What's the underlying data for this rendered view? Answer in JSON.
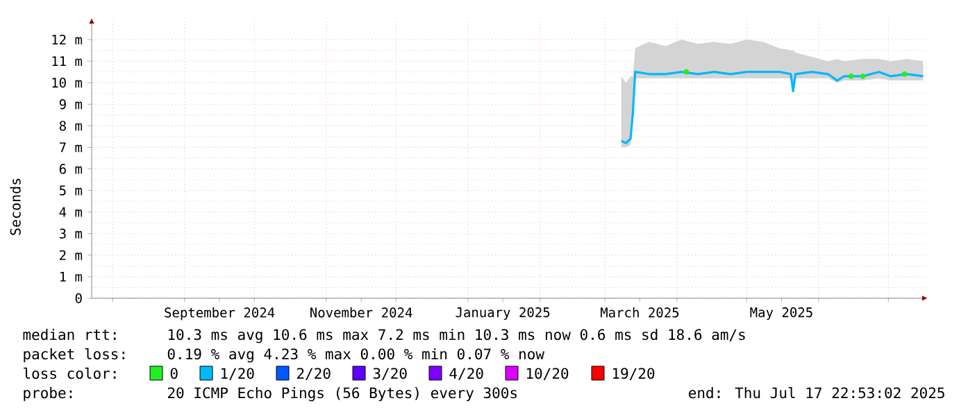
{
  "chart_data": {
    "type": "line",
    "ylabel": "Seconds",
    "xlim": [
      "2024-07-22T22:53",
      "2025-07-17T22:53"
    ],
    "xticks": [
      {
        "value": "2024-08-01",
        "label": null
      },
      {
        "value": "2024-09-01",
        "label": null
      },
      {
        "value": "2024-10-01",
        "label": null
      },
      {
        "value": "2024-11-01",
        "label": null
      },
      {
        "value": "2024-12-01",
        "label": null
      },
      {
        "value": "2025-01-01",
        "label": null
      },
      {
        "value": "2025-02-01",
        "label": null
      },
      {
        "value": "2025-03-01",
        "label": null
      },
      {
        "value": "2025-04-01",
        "label": null
      },
      {
        "value": "2025-05-01",
        "label": null
      },
      {
        "value": "2025-06-01",
        "label": null
      },
      {
        "value": "2025-07-01",
        "label": null
      },
      {
        "value": "2024-09-16",
        "label": "September 2024"
      },
      {
        "value": "2024-11-16",
        "label": "November 2024"
      },
      {
        "value": "2025-01-16",
        "label": "January 2025"
      },
      {
        "value": "2025-03-16",
        "label": "March 2025"
      },
      {
        "value": "2025-05-16",
        "label": "May 2025"
      }
    ],
    "ylim": [
      0,
      13
    ],
    "yticks": [
      0,
      {
        "value": 1,
        "label": "1 m"
      },
      {
        "value": 2,
        "label": "2 m"
      },
      {
        "value": 3,
        "label": "3 m"
      },
      {
        "value": 4,
        "label": "4 m"
      },
      {
        "value": 5,
        "label": "5 m"
      },
      {
        "value": 6,
        "label": "6 m"
      },
      {
        "value": 7,
        "label": "7 m"
      },
      {
        "value": 8,
        "label": "8 m"
      },
      {
        "value": 9,
        "label": "9 m"
      },
      {
        "value": 10,
        "label": "10 m"
      },
      {
        "value": 11,
        "label": "11 m"
      },
      {
        "value": 12,
        "label": "12 m"
      }
    ],
    "grid": true,
    "legend": "bottom",
    "legend_title": "loss color:",
    "series": [
      {
        "name": "0",
        "type": "scatter",
        "marker": "circle",
        "color": "#22ee22",
        "x": [
          "2025-04-05",
          "2025-06-15",
          "2025-06-20",
          "2025-07-08"
        ],
        "values": [
          10.5,
          10.3,
          10.3,
          10.4
        ]
      },
      {
        "name": "1/20",
        "marker": "none",
        "color": "#00b8ff",
        "x": [
          "2025-03-08",
          "2025-03-10",
          "2025-03-12",
          "2025-03-13",
          "2025-03-14",
          "2025-03-20",
          "2025-03-27",
          "2025-04-03",
          "2025-04-10",
          "2025-04-17",
          "2025-04-24",
          "2025-05-01",
          "2025-05-08",
          "2025-05-15",
          "2025-05-20",
          "2025-05-21",
          "2025-05-22",
          "2025-05-29",
          "2025-06-05",
          "2025-06-09",
          "2025-06-12",
          "2025-06-20",
          "2025-06-27",
          "2025-07-02",
          "2025-07-09",
          "2025-07-16"
        ],
        "values": [
          7.3,
          7.2,
          7.4,
          8.6,
          10.5,
          10.4,
          10.4,
          10.5,
          10.4,
          10.5,
          10.4,
          10.5,
          10.5,
          10.5,
          10.4,
          9.6,
          10.4,
          10.5,
          10.4,
          10.1,
          10.3,
          10.3,
          10.5,
          10.3,
          10.4,
          10.3
        ],
        "lower": [
          7.0,
          7.0,
          7.1,
          8.4,
          10.2,
          10.2,
          10.2,
          10.2,
          10.2,
          10.2,
          10.2,
          10.2,
          10.2,
          10.2,
          10.2,
          9.5,
          10.2,
          10.2,
          10.2,
          10.0,
          10.1,
          10.1,
          10.2,
          10.1,
          10.1,
          10.1
        ],
        "upper": [
          10.3,
          10.0,
          10.3,
          10.3,
          11.6,
          11.9,
          11.7,
          12.0,
          11.8,
          11.9,
          11.8,
          12.0,
          11.9,
          11.6,
          11.5,
          11.5,
          11.4,
          11.2,
          11.0,
          11.1,
          11.0,
          11.1,
          11.1,
          11.0,
          11.1,
          11.0
        ]
      },
      {
        "name": "2/20",
        "color": "#0059ff"
      },
      {
        "name": "3/20",
        "color": "#5e00ff"
      },
      {
        "name": "4/20",
        "color": "#7e00ff"
      },
      {
        "name": "10/20",
        "color": "#dd00ff"
      },
      {
        "name": "19/20",
        "color": "#ff0000"
      }
    ],
    "annotations": [
      "median rtt:",
      "10.3 ms avg  10.6 ms max  7.2 ms min  10.3 ms now  0.6 ms sd  18.6   am/s",
      "packet loss:",
      "0.19 % avg  4.23 % max  0.00 % min  0.07 % now",
      "probe:",
      "20 ICMP Echo Pings (56 Bytes) every 300s",
      "end: Thu Jul 17 22:53:02 2025"
    ]
  }
}
